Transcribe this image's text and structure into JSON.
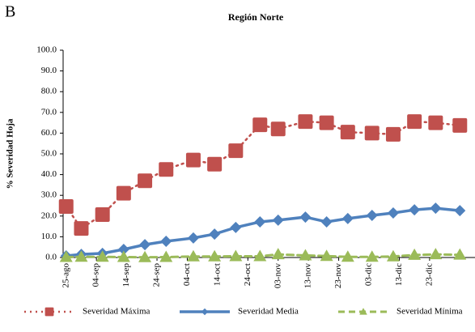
{
  "chart_data": {
    "type": "line",
    "panel_label": "B",
    "title": "Región Norte",
    "y_label": "% Severidad Hoja",
    "xlim": [
      -1,
      135
    ],
    "xticks": [
      {
        "value": 0,
        "label": "25-ago"
      },
      {
        "value": 10,
        "label": "04-sep"
      },
      {
        "value": 20,
        "label": "14-sep"
      },
      {
        "value": 30,
        "label": "24-sep"
      },
      {
        "value": 40,
        "label": "04-oct"
      },
      {
        "value": 50,
        "label": "14-oct"
      },
      {
        "value": 60,
        "label": "24-oct"
      },
      {
        "value": 70,
        "label": "03-nov"
      },
      {
        "value": 80,
        "label": "13-nov"
      },
      {
        "value": 90,
        "label": "23-nov"
      },
      {
        "value": 100,
        "label": "03-dic"
      },
      {
        "value": 110,
        "label": "13-dic"
      },
      {
        "value": 120,
        "label": "23-dic"
      }
    ],
    "ylim": [
      0,
      100
    ],
    "yticks": [
      {
        "value": 0,
        "label": "0.0"
      },
      {
        "value": 10,
        "label": "10.0"
      },
      {
        "value": 20,
        "label": "20.0"
      },
      {
        "value": 30,
        "label": "30.0"
      },
      {
        "value": 40,
        "label": "40.0"
      },
      {
        "value": 50,
        "label": "50.0"
      },
      {
        "value": 60,
        "label": "60.0"
      },
      {
        "value": 70,
        "label": "70.0"
      },
      {
        "value": 80,
        "label": "80.0"
      },
      {
        "value": 90,
        "label": "90.0"
      },
      {
        "value": 100,
        "label": "100.0"
      }
    ],
    "x": [
      0,
      5,
      12,
      19,
      26,
      33,
      42,
      49,
      56,
      64,
      70,
      79,
      86,
      93,
      101,
      108,
      115,
      122,
      130
    ],
    "series": [
      {
        "name": "Severidad Máxima",
        "color": "#c0504d",
        "line_style": "dotted",
        "marker": "square",
        "values": [
          24.6,
          14,
          20.7,
          31,
          37,
          42.5,
          47,
          45,
          51.5,
          64,
          62,
          65.6,
          65,
          60.5,
          60,
          59.4,
          65.6,
          65,
          63.7
        ]
      },
      {
        "name": "Severidad Media",
        "color": "#4f81bd",
        "line_style": "solid",
        "marker": "diamond",
        "values": [
          0.8,
          1.5,
          2,
          3.9,
          6.2,
          7.8,
          9.4,
          11.3,
          14.5,
          17.2,
          18,
          19.5,
          17.2,
          18.8,
          20.3,
          21.5,
          23,
          23.8,
          22.6
        ]
      },
      {
        "name": "Severidad Mínima",
        "color": "#9bbb59",
        "line_style": "dashed",
        "marker": "triangle",
        "values": [
          0.2,
          0.3,
          0.3,
          0.2,
          0.1,
          0.2,
          0.5,
          0.5,
          0.6,
          0.6,
          1.5,
          1,
          0.7,
          0.3,
          0.3,
          0.5,
          1.2,
          1.5,
          1.3
        ]
      }
    ],
    "legend": "bottom"
  }
}
